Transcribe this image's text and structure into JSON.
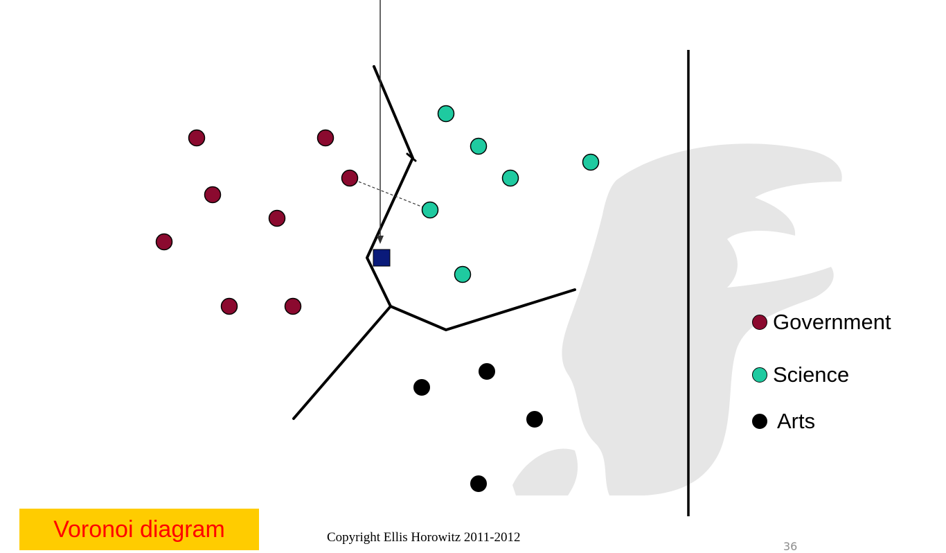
{
  "colors": {
    "government": "#8b0a2f",
    "science": "#1fcaa0",
    "arts": "#000000",
    "query": "#0a1a7a",
    "title_bg": "#ffcc00",
    "title_text": "#ff0000",
    "watermark": "#e6e6e6"
  },
  "legend": {
    "items": [
      {
        "key": "government",
        "label": "Government"
      },
      {
        "key": "science",
        "label": "Science"
      },
      {
        "key": "arts",
        "label": "Arts"
      }
    ]
  },
  "title": {
    "label": "Voronoi diagram"
  },
  "footer": {
    "copyright": "Copyright Ellis Horowitz 2011-2012",
    "slide_number": "36"
  },
  "icons": {
    "watermark": "trojan-head-watermark-icon",
    "query": "query-square-icon"
  }
}
